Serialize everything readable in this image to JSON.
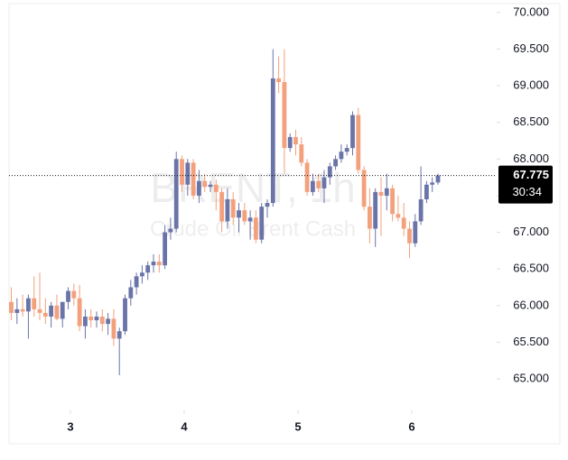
{
  "chart_data": {
    "type": "candlestick",
    "watermark": {
      "symbol": "BRENT, 1h",
      "description": "Crude Oil Brent Cash"
    },
    "x": [
      2.48,
      2.53,
      2.58,
      2.63,
      2.68,
      2.73,
      2.78,
      2.83,
      2.88,
      2.93,
      2.98,
      3.03,
      3.08,
      3.13,
      3.18,
      3.23,
      3.28,
      3.33,
      3.38,
      3.43,
      3.48,
      3.53,
      3.58,
      3.63,
      3.68,
      3.73,
      3.78,
      3.83,
      3.88,
      3.93,
      3.98,
      4.03,
      4.08,
      4.13,
      4.18,
      4.23,
      4.28,
      4.33,
      4.38,
      4.43,
      4.48,
      4.53,
      4.58,
      4.63,
      4.68,
      4.73,
      4.78,
      4.83,
      4.88,
      4.93,
      4.98,
      5.03,
      5.08,
      5.13,
      5.18,
      5.23,
      5.28,
      5.33,
      5.38,
      5.43,
      5.48,
      5.53,
      5.58,
      5.63,
      5.68,
      5.73,
      5.78,
      5.83,
      5.88,
      5.93,
      5.98,
      6.03,
      6.08,
      6.13,
      6.18,
      6.23
    ],
    "open": [
      66.05,
      65.9,
      65.95,
      65.92,
      66.1,
      65.95,
      65.9,
      65.85,
      66.0,
      65.82,
      66.05,
      66.2,
      66.1,
      65.72,
      65.85,
      65.8,
      65.85,
      65.75,
      65.82,
      65.55,
      65.65,
      66.1,
      66.25,
      66.4,
      66.45,
      66.55,
      66.6,
      66.55,
      67.0,
      67.05,
      68.0,
      67.65,
      67.95,
      67.5,
      67.7,
      67.62,
      67.65,
      67.55,
      67.15,
      67.45,
      67.2,
      67.3,
      67.15,
      67.2,
      66.9,
      67.35,
      67.4,
      69.1,
      69.05,
      68.15,
      68.3,
      68.2,
      67.95,
      67.55,
      67.7,
      67.6,
      67.75,
      67.9,
      68.0,
      68.1,
      68.15,
      68.6,
      67.85,
      67.35,
      67.05,
      67.55,
      67.5,
      67.6,
      67.25,
      67.2,
      67.05,
      66.85,
      67.15,
      67.45,
      67.65,
      67.68
    ],
    "high": [
      66.25,
      66.1,
      66.15,
      66.15,
      66.4,
      66.45,
      66.1,
      66.05,
      66.15,
      66.05,
      66.25,
      66.3,
      66.28,
      65.95,
      65.95,
      65.92,
      65.95,
      65.9,
      65.95,
      65.7,
      66.15,
      66.35,
      66.45,
      66.55,
      66.6,
      66.7,
      66.7,
      67.1,
      67.2,
      68.1,
      68.05,
      68.0,
      68.0,
      67.85,
      67.8,
      67.7,
      67.72,
      67.6,
      67.6,
      67.55,
      67.4,
      67.4,
      67.3,
      67.3,
      67.4,
      67.45,
      69.5,
      69.4,
      69.5,
      68.35,
      68.4,
      68.3,
      68.0,
      67.8,
      67.8,
      67.85,
      67.95,
      68.05,
      68.2,
      68.2,
      68.65,
      68.7,
      67.9,
      67.6,
      67.6,
      67.75,
      67.8,
      67.65,
      67.5,
      67.4,
      67.15,
      67.25,
      67.9,
      67.7,
      67.75,
      67.8
    ],
    "low": [
      65.8,
      65.75,
      65.85,
      65.55,
      65.85,
      65.8,
      65.75,
      65.7,
      65.8,
      65.7,
      65.95,
      66.0,
      65.65,
      65.55,
      65.7,
      65.7,
      65.65,
      65.6,
      65.45,
      65.05,
      65.6,
      66.0,
      66.15,
      66.3,
      66.35,
      66.45,
      66.45,
      66.5,
      66.9,
      67.0,
      67.55,
      67.5,
      67.45,
      67.4,
      67.55,
      67.55,
      67.3,
      67.0,
      67.05,
      67.1,
      67.0,
      67.1,
      66.9,
      66.85,
      66.85,
      67.2,
      67.35,
      68.9,
      67.8,
      68.1,
      68.05,
      67.9,
      67.5,
      67.5,
      67.55,
      67.4,
      67.65,
      67.85,
      67.95,
      68.05,
      68.05,
      67.8,
      67.3,
      66.85,
      66.8,
      66.95,
      67.3,
      67.15,
      67.15,
      66.95,
      66.65,
      66.8,
      67.1,
      67.4,
      67.55,
      67.65
    ],
    "close": [
      65.9,
      65.95,
      65.92,
      66.1,
      65.95,
      65.9,
      65.85,
      66.0,
      65.82,
      66.05,
      66.2,
      66.1,
      65.72,
      65.85,
      65.8,
      65.85,
      65.75,
      65.82,
      65.55,
      65.65,
      66.1,
      66.25,
      66.4,
      66.45,
      66.55,
      66.6,
      66.55,
      67.0,
      67.05,
      68.0,
      67.65,
      67.95,
      67.5,
      67.7,
      67.62,
      67.65,
      67.55,
      67.15,
      67.45,
      67.2,
      67.3,
      67.15,
      67.2,
      66.9,
      67.35,
      67.4,
      69.1,
      69.05,
      68.15,
      68.3,
      68.2,
      67.95,
      67.55,
      67.7,
      67.6,
      67.75,
      67.9,
      68.0,
      68.1,
      68.15,
      68.6,
      67.85,
      67.35,
      67.05,
      67.55,
      67.5,
      67.6,
      67.25,
      67.2,
      67.05,
      66.85,
      67.15,
      67.45,
      67.65,
      67.68,
      67.775
    ],
    "up_color": "#6a74a8",
    "down_color": "#f3a07c",
    "xlim": [
      2.46,
      6.746
    ],
    "xticks": [
      3,
      4,
      5,
      6
    ],
    "ylim": [
      64.57,
      70.17
    ],
    "yticks": [
      {
        "value": 65,
        "label": "65.000"
      },
      {
        "value": 65.5,
        "label": "65.500"
      },
      {
        "value": 66,
        "label": "66.000"
      },
      {
        "value": 66.5,
        "label": "66.500"
      },
      {
        "value": 67,
        "label": "67.000"
      },
      {
        "value": 67.5,
        "label": "67.500"
      },
      {
        "value": 68,
        "label": "68.000"
      },
      {
        "value": 68.5,
        "label": "68.500"
      },
      {
        "value": 69,
        "label": "69.000"
      },
      {
        "value": 69.5,
        "label": "69.500"
      },
      {
        "value": 70,
        "label": "70.000"
      }
    ],
    "last_price": {
      "value": 67.775,
      "countdown": "30:34"
    }
  }
}
